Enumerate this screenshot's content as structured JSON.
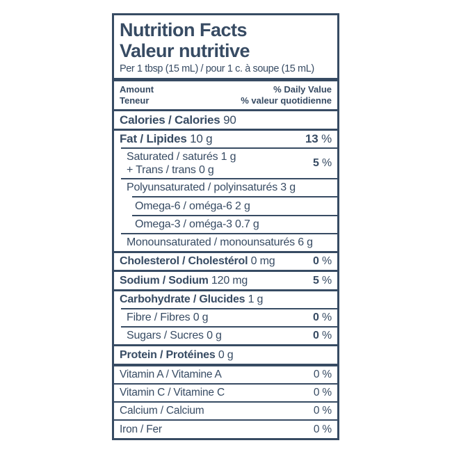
{
  "label": {
    "title_en": "Nutrition Facts",
    "title_fr": "Valeur nutritive",
    "serving": "Per 1 tbsp (15 mL) / pour 1 c. à soupe (15 mL)",
    "amount_en": "Amount",
    "amount_fr": "Teneur",
    "dv_en": "% Daily Value",
    "dv_fr": "% valeur quotidienne",
    "percent": "%",
    "colors": {
      "ink": "#374b63",
      "background": "#ffffff"
    },
    "rows": {
      "calories": {
        "name": "Calories / Calories",
        "amount": "90"
      },
      "fat": {
        "name": "Fat / Lipides",
        "amount": "10 g",
        "dv": "13"
      },
      "saturated": {
        "line1": "Saturated / saturés 1 g",
        "line2": "+ Trans / trans 0 g",
        "dv": "5"
      },
      "polyunsaturated": {
        "name": "Polyunsaturated / polyinsaturés 3 g"
      },
      "omega6": {
        "name": "Omega-6 / oméga-6 2 g"
      },
      "omega3": {
        "name": "Omega-3 / oméga-3 0.7 g"
      },
      "monounsaturated": {
        "name": "Monounsaturated / monounsaturés 6 g"
      },
      "cholesterol": {
        "name": "Cholesterol / Cholestérol",
        "amount": "0 mg",
        "dv": "0"
      },
      "sodium": {
        "name": "Sodium / Sodium",
        "amount": "120 mg",
        "dv": "5"
      },
      "carbohydrate": {
        "name": "Carbohydrate / Glucides",
        "amount": "1 g"
      },
      "fibre": {
        "name": "Fibre / Fibres 0 g",
        "dv": "0"
      },
      "sugars": {
        "name": "Sugars / Sucres 0 g",
        "dv": "0"
      },
      "protein": {
        "name": "Protein / Protéines",
        "amount": "0 g"
      },
      "vitamin_a": {
        "name": "Vitamin A / Vitamine A",
        "dv": "0"
      },
      "vitamin_c": {
        "name": "Vitamin C / Vitamine C",
        "dv": "0"
      },
      "calcium": {
        "name": "Calcium / Calcium",
        "dv": "0"
      },
      "iron": {
        "name": "Iron / Fer",
        "dv": "0"
      }
    }
  }
}
